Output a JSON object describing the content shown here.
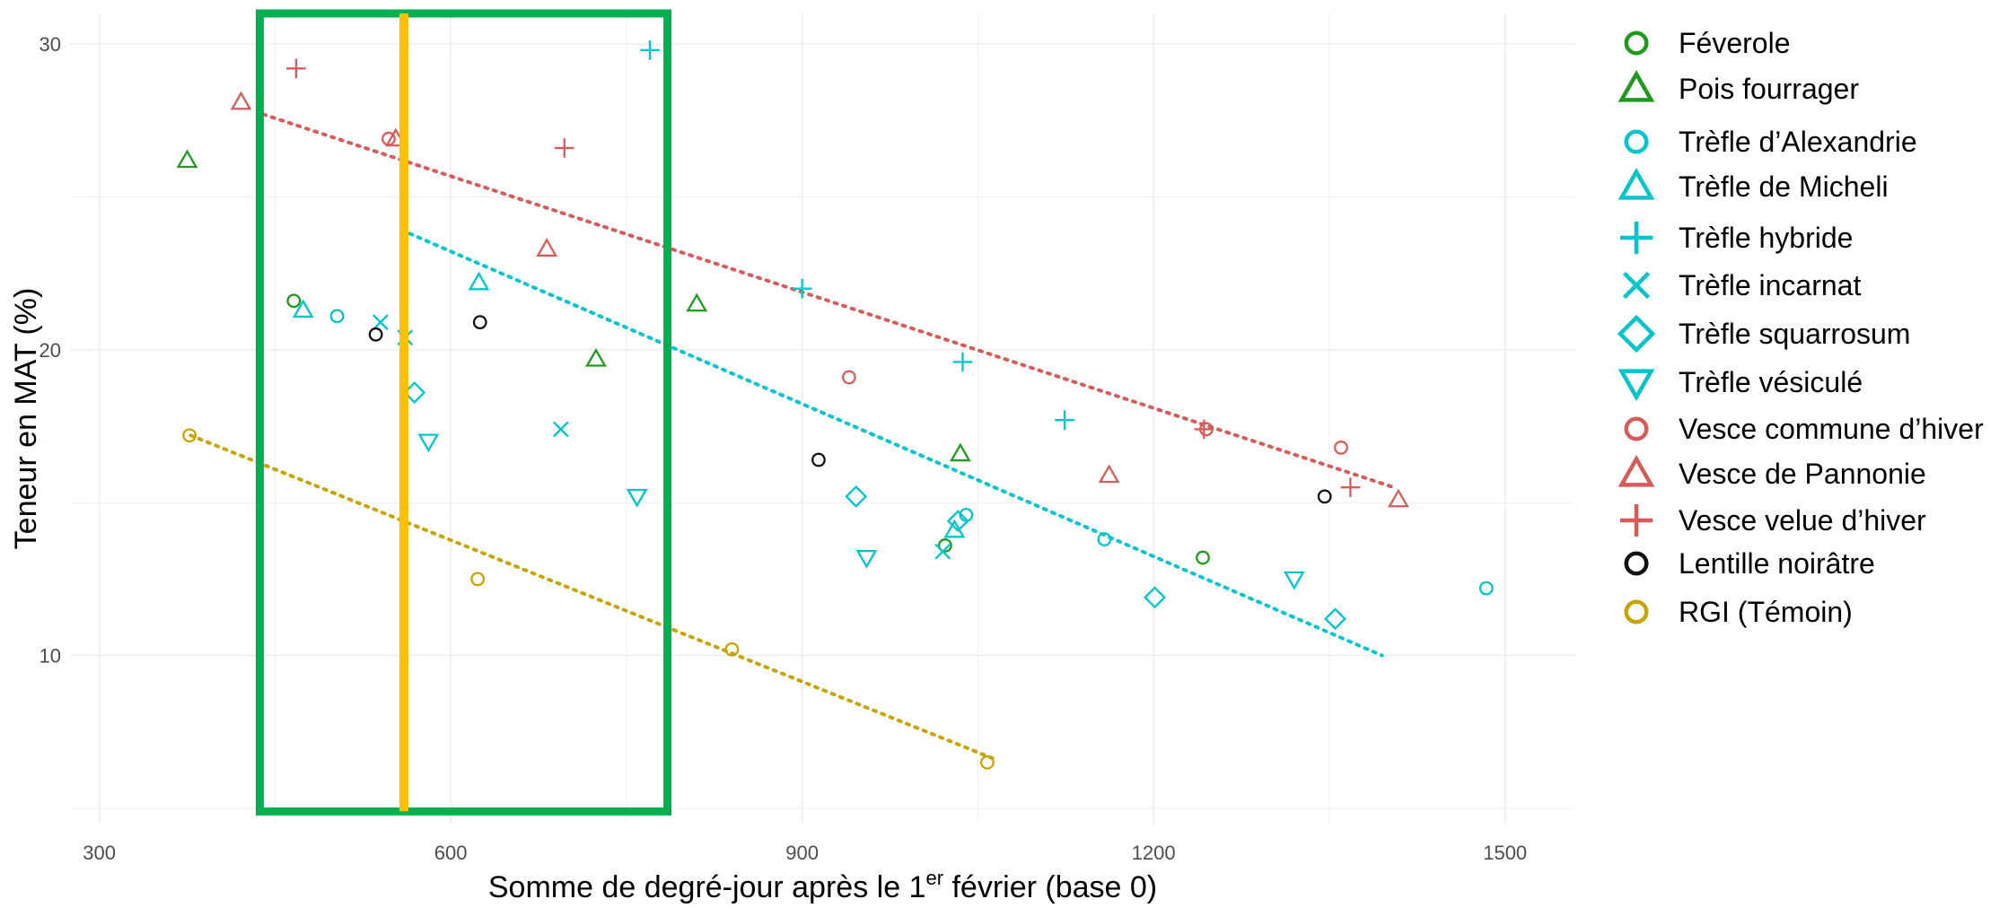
{
  "chart_data": {
    "type": "scatter",
    "title": "",
    "xlabel": "Somme de degré-jour après le 1",
    "xlabel_sup": "er",
    "xlabel_end": " février (base 0)",
    "ylabel": "Teneur en MAT (%)",
    "xlim": [
      275,
      1560
    ],
    "ylim": [
      4.5,
      31
    ],
    "xticks": [
      300,
      600,
      900,
      1200,
      1500
    ],
    "yticks": [
      10,
      20,
      30
    ],
    "grid": true,
    "legend_position": "right",
    "colors": {
      "green": "#1f9a1f",
      "cyan": "#00c5cd",
      "red": "#d65c5c",
      "black": "#111111",
      "gold": "#c8a400",
      "highlight_box": "#00b050",
      "highlight_line": "#ffc000"
    },
    "series": [
      {
        "name": "Féverole",
        "shape": "circle",
        "color": "#1f9a1f",
        "points": [
          [
            466,
            21.6
          ],
          [
            1022,
            13.6
          ],
          [
            1242,
            13.2
          ]
        ]
      },
      {
        "name": "Pois fourrager",
        "shape": "triangle-up",
        "color": "#1f9a1f",
        "points": [
          [
            375,
            26.2
          ],
          [
            810,
            21.5
          ],
          [
            724,
            19.7
          ],
          [
            1035,
            16.6
          ]
        ]
      },
      {
        "name": "Trèfle d’Alexandrie",
        "shape": "circle",
        "color": "#00c5cd",
        "points": [
          [
            503,
            21.1
          ],
          [
            1040,
            14.6
          ],
          [
            1158,
            13.8
          ],
          [
            1484,
            12.2
          ]
        ]
      },
      {
        "name": "Trèfle de Micheli",
        "shape": "triangle-up",
        "color": "#00c5cd",
        "points": [
          [
            474,
            21.3
          ],
          [
            624,
            22.2
          ],
          [
            1030,
            14.1
          ]
        ]
      },
      {
        "name": "Trèfle hybride",
        "shape": "plus",
        "color": "#00c5cd",
        "points": [
          [
            770,
            29.8
          ],
          [
            900,
            22.0
          ],
          [
            1037,
            19.6
          ],
          [
            1124,
            17.7
          ]
        ]
      },
      {
        "name": "Trèfle incarnat",
        "shape": "cross",
        "color": "#00c5cd",
        "points": [
          [
            540,
            20.9
          ],
          [
            561,
            20.4
          ],
          [
            694,
            17.4
          ],
          [
            1020,
            13.4
          ]
        ]
      },
      {
        "name": "Trèfle squarrosum",
        "shape": "diamond",
        "color": "#00c5cd",
        "points": [
          [
            569,
            18.6
          ],
          [
            946,
            15.2
          ],
          [
            1033,
            14.4
          ],
          [
            1201,
            11.9
          ],
          [
            1355,
            11.2
          ]
        ]
      },
      {
        "name": "Trèfle vésiculé",
        "shape": "triangle-down",
        "color": "#00c5cd",
        "points": [
          [
            581,
            17.0
          ],
          [
            759,
            15.2
          ],
          [
            955,
            13.2
          ],
          [
            1320,
            12.5
          ]
        ]
      },
      {
        "name": "Vesce commune d’hiver",
        "shape": "circle",
        "color": "#d65c5c",
        "points": [
          [
            547,
            26.9
          ],
          [
            940,
            19.1
          ],
          [
            1245,
            17.4
          ],
          [
            1360,
            16.8
          ]
        ]
      },
      {
        "name": "Vesce de Pannonie",
        "shape": "triangle-up",
        "color": "#d65c5c",
        "points": [
          [
            421,
            28.1
          ],
          [
            553,
            26.9
          ],
          [
            682,
            23.3
          ],
          [
            1162,
            15.9
          ],
          [
            1409,
            15.1
          ]
        ]
      },
      {
        "name": "Vesce velue d’hiver",
        "shape": "plus",
        "color": "#d65c5c",
        "points": [
          [
            468,
            29.2
          ],
          [
            697,
            26.6
          ],
          [
            1243,
            17.4
          ],
          [
            1368,
            15.5
          ]
        ]
      },
      {
        "name": "Lentille noirâtre",
        "shape": "circle",
        "color": "#111111",
        "points": [
          [
            536,
            20.5
          ],
          [
            625,
            20.9
          ],
          [
            914,
            16.4
          ],
          [
            1346,
            15.2
          ]
        ]
      },
      {
        "name": "RGI (Témoin)",
        "shape": "circle",
        "color": "#c8a400",
        "points": [
          [
            377,
            17.2
          ],
          [
            623,
            12.5
          ],
          [
            840,
            10.2
          ],
          [
            1058,
            6.5
          ]
        ]
      }
    ],
    "trend_lines": [
      {
        "color": "#d65c5c",
        "x": [
          440,
          1405
        ],
        "y": [
          27.7,
          15.5
        ]
      },
      {
        "color": "#00c5cd",
        "x": [
          565,
          1395
        ],
        "y": [
          23.8,
          10.0
        ]
      },
      {
        "color": "#c8a400",
        "x": [
          378,
          1065
        ],
        "y": [
          17.2,
          6.6
        ]
      }
    ],
    "highlight_box": {
      "x": [
        437,
        785
      ],
      "y": [
        4.9,
        31.0
      ]
    },
    "highlight_line": {
      "x": 560
    }
  }
}
